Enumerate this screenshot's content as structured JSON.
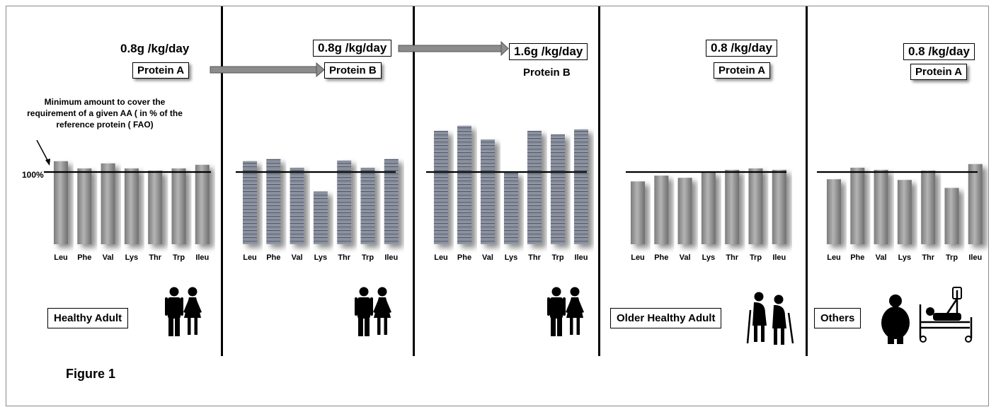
{
  "figure_label": "Figure 1",
  "reference_label": "100%",
  "annotation": "Minimum amount to cover the requirement of a given AA  ( in % of the reference protein ( FAO)",
  "colors": {
    "bar_gray": "#9a9a9a",
    "bar_pattern": "#4d5565",
    "reference_line": "#000000",
    "arrow": "#888888"
  },
  "icons": {
    "couple": "man-and-woman-icon",
    "elderly": "elderly-couple-with-canes-icon",
    "obese": "obese-person-icon",
    "hospital": "patient-in-hospital-bed-icon"
  },
  "chart_data": [
    {
      "type": "bar",
      "dose": "0.8g /kg/day",
      "protein": "Protein A",
      "group": "Healthy Adult",
      "categories": [
        "Leu",
        "Phe",
        "Val",
        "Lys",
        "Thr",
        "Trp",
        "Ileu"
      ],
      "values": [
        115,
        105,
        112,
        105,
        102,
        105,
        110
      ],
      "reference": 100,
      "ylim": [
        0,
        170
      ]
    },
    {
      "type": "bar",
      "dose": "0.8g /kg/day",
      "protein": "Protein B",
      "group": "",
      "categories": [
        "Leu",
        "Phe",
        "Val",
        "Lys",
        "Thr",
        "Trp",
        "Ileu"
      ],
      "values": [
        115,
        118,
        106,
        73,
        116,
        106,
        118
      ],
      "reference": 100,
      "ylim": [
        0,
        170
      ]
    },
    {
      "type": "bar",
      "dose": "1.6g /kg/day",
      "protein": "Protein B",
      "group": "",
      "categories": [
        "Leu",
        "Phe",
        "Val",
        "Lys",
        "Thr",
        "Trp",
        "Ileu"
      ],
      "values": [
        157,
        164,
        145,
        99,
        157,
        152,
        159
      ],
      "reference": 100,
      "ylim": [
        0,
        170
      ]
    },
    {
      "type": "bar",
      "dose": "0.8 /kg/day",
      "protein": "Protein A",
      "group": "Older Healthy Adult",
      "categories": [
        "Leu",
        "Phe",
        "Val",
        "Lys",
        "Thr",
        "Trp",
        "Ileu"
      ],
      "values": [
        87,
        95,
        92,
        100,
        103,
        105,
        103
      ],
      "reference": 100,
      "ylim": [
        0,
        170
      ]
    },
    {
      "type": "bar",
      "dose": "0.8 /kg/day",
      "protein": "Protein A",
      "group": "Others",
      "categories": [
        "Leu",
        "Phe",
        "Val",
        "Lys",
        "Thr",
        "Trp",
        "Ileu"
      ],
      "values": [
        90,
        106,
        103,
        89,
        102,
        78,
        111
      ],
      "reference": 100,
      "ylim": [
        0,
        170
      ]
    }
  ]
}
